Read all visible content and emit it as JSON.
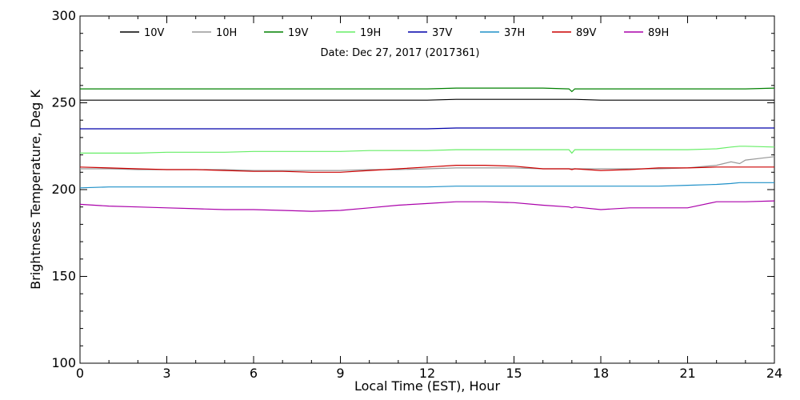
{
  "chart_data": {
    "type": "line",
    "title": "",
    "annotation": "Date: Dec 27, 2017 (2017361)",
    "xlabel": "Local Time (EST), Hour",
    "ylabel": "Brightness Temperature, Deg K",
    "xlim": [
      0,
      24
    ],
    "ylim": [
      100,
      300
    ],
    "xticks": [
      0,
      3,
      6,
      9,
      12,
      15,
      18,
      21,
      24
    ],
    "xtick_labels": [
      "0",
      "3",
      "6",
      "9",
      "12",
      "15",
      "18",
      "21",
      "24"
    ],
    "yticks": [
      100,
      150,
      200,
      250,
      300
    ],
    "ytick_labels": [
      "100",
      "150",
      "200",
      "250",
      "300"
    ],
    "grid": false,
    "legend_position": "top",
    "x": [
      0,
      1,
      2,
      3,
      4,
      5,
      6,
      7,
      8,
      9,
      10,
      11,
      12,
      13,
      14,
      15,
      16,
      16.9,
      17,
      17.1,
      18,
      19,
      20,
      21,
      22,
      22.5,
      22.8,
      23,
      24
    ],
    "series": [
      {
        "name": "10V",
        "color": "#000000",
        "values": [
          251.5,
          251.5,
          251.5,
          251.5,
          251.5,
          251.5,
          251.5,
          251.5,
          251.5,
          251.5,
          251.5,
          251.5,
          251.5,
          252,
          252,
          252,
          252,
          252,
          252,
          252,
          251.5,
          251.5,
          251.5,
          251.5,
          251.5,
          251.5,
          251.5,
          251.5,
          251.5
        ]
      },
      {
        "name": "10H",
        "color": "#999999",
        "values": [
          212,
          212,
          211.5,
          211.5,
          211.5,
          211.5,
          211,
          211,
          211,
          211,
          211.5,
          211.5,
          212,
          212.5,
          212.5,
          212.5,
          212,
          212,
          212,
          212,
          212,
          212,
          212,
          212.5,
          214,
          216,
          215,
          217,
          219
        ]
      },
      {
        "name": "19V",
        "color": "#008000",
        "values": [
          258,
          258,
          258,
          258,
          258,
          258,
          258,
          258,
          258,
          258,
          258,
          258,
          258,
          258.5,
          258.5,
          258.5,
          258.5,
          258,
          256.5,
          258,
          258,
          258,
          258,
          258,
          258,
          258,
          258,
          258,
          258.5
        ]
      },
      {
        "name": "19H",
        "color": "#66ee66",
        "values": [
          221,
          221,
          221,
          221.5,
          221.5,
          221.5,
          222,
          222,
          222,
          222,
          222.5,
          222.5,
          222.5,
          223,
          223,
          223,
          223,
          223,
          221,
          223,
          223,
          223,
          223,
          223,
          223.5,
          224.5,
          225,
          225,
          224.5
        ]
      },
      {
        "name": "37V",
        "color": "#0000aa",
        "values": [
          235,
          235,
          235,
          235,
          235,
          235,
          235,
          235,
          235,
          235,
          235,
          235,
          235,
          235.5,
          235.5,
          235.5,
          235.5,
          235.5,
          235.5,
          235.5,
          235.5,
          235.5,
          235.5,
          235.5,
          235.5,
          235.5,
          235.5,
          235.5,
          235.5
        ]
      },
      {
        "name": "37H",
        "color": "#1e90c8",
        "values": [
          201,
          201.5,
          201.5,
          201.5,
          201.5,
          201.5,
          201.5,
          201.5,
          201.5,
          201.5,
          201.5,
          201.5,
          201.5,
          202,
          202,
          202,
          202,
          202,
          202,
          202,
          202,
          202,
          202,
          202.5,
          203,
          203.5,
          204,
          204,
          204
        ]
      },
      {
        "name": "89V",
        "color": "#cc0000",
        "values": [
          213,
          212.5,
          212,
          211.5,
          211.5,
          211,
          210.5,
          210.5,
          210,
          210,
          211,
          212,
          213,
          214,
          214,
          213.5,
          212,
          212,
          211.5,
          212,
          211,
          211.5,
          212.5,
          212.5,
          213,
          213,
          213,
          213,
          213
        ]
      },
      {
        "name": "89H",
        "color": "#aa00aa",
        "values": [
          191.5,
          190.5,
          190,
          189.5,
          189,
          188.5,
          188.5,
          188,
          187.5,
          188,
          189.5,
          191,
          192,
          193,
          193,
          192.5,
          191,
          190,
          189.5,
          190,
          188.5,
          189.5,
          189.5,
          189.5,
          193,
          193,
          193,
          193,
          193.5
        ]
      }
    ]
  }
}
